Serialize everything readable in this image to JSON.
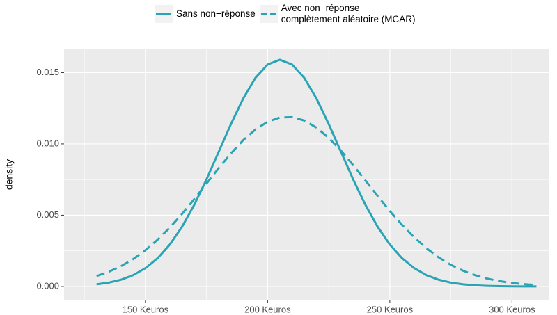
{
  "chart_data": {
    "type": "line",
    "ylabel": "density",
    "x": [
      130,
      135,
      140,
      145,
      150,
      155,
      160,
      165,
      170,
      175,
      180,
      185,
      190,
      195,
      200,
      205,
      210,
      215,
      220,
      225,
      230,
      235,
      240,
      245,
      250,
      255,
      260,
      265,
      270,
      275,
      280,
      285,
      290,
      295,
      300,
      305,
      310
    ],
    "series": [
      {
        "name": "Sans non−réponse",
        "color": "#2aa3b5",
        "dash": "solid",
        "values": [
          0.000147,
          0.000268,
          0.000471,
          0.000792,
          0.00128,
          0.00198,
          0.00294,
          0.00419,
          0.00573,
          0.00751,
          0.00945,
          0.01139,
          0.01318,
          0.01463,
          0.01557,
          0.0159,
          0.01557,
          0.01463,
          0.01318,
          0.01139,
          0.00945,
          0.00751,
          0.00573,
          0.00419,
          0.00294,
          0.00198,
          0.00128,
          0.000792,
          0.000471,
          0.000268,
          0.000147,
          7.7e-05,
          3.9e-05,
          1.9e-05,
          8.6e-06,
          3.8e-06,
          1.6e-06
        ]
      },
      {
        "name": "Avec non−réponse\ncomplètement aléatoire (MCAR)",
        "color": "#2aa3b5",
        "dash": "dashed",
        "values": [
          0.000728,
          0.00103,
          0.00142,
          0.00192,
          0.00254,
          0.00328,
          0.00413,
          0.00509,
          0.00613,
          0.00722,
          0.0083,
          0.00933,
          0.01026,
          0.01101,
          0.01155,
          0.01185,
          0.01188,
          0.01164,
          0.01114,
          0.01042,
          0.00953,
          0.00851,
          0.00744,
          0.00635,
          0.00529,
          0.00432,
          0.00344,
          0.00268,
          0.00204,
          0.00151,
          0.0011,
          0.000782,
          0.000543,
          0.000368,
          0.000244,
          0.000158,
          0.0001
        ]
      }
    ],
    "xlim": [
      116.7,
      315
    ],
    "ylim": [
      -0.00098,
      0.01668
    ],
    "xticks": [
      {
        "value": 150,
        "label": "150 Keuros"
      },
      {
        "value": 200,
        "label": "200 Keuros"
      },
      {
        "value": 250,
        "label": "250 Keuros"
      },
      {
        "value": 300,
        "label": "300 Keuros"
      }
    ],
    "yticks": [
      {
        "value": 0,
        "label": "0.000"
      },
      {
        "value": 0.005,
        "label": "0.005"
      },
      {
        "value": 0.01,
        "label": "0.010"
      },
      {
        "value": 0.015,
        "label": "0.015"
      }
    ],
    "grid": true,
    "legend": "top"
  }
}
